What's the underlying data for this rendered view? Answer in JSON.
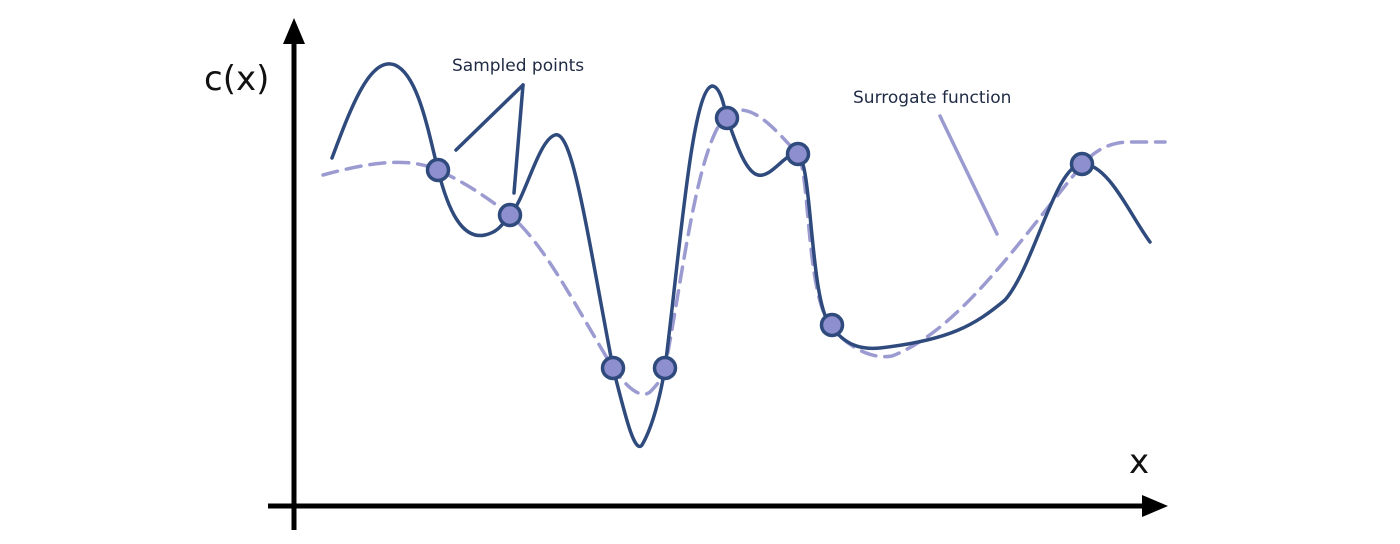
{
  "labels": {
    "y_axis": "c(x)",
    "x_axis": "x",
    "sampled_points": "Sampled points",
    "surrogate_function": "Surrogate function"
  },
  "colors": {
    "axis": "#000000",
    "true_function": "#2f4a7c",
    "surrogate": "#9b9bd1",
    "point_fill": "#8e8fcf",
    "point_stroke": "#2f4a7c",
    "pointer_dark": "#2f4a7c",
    "pointer_light": "#9b9bd1"
  }
}
